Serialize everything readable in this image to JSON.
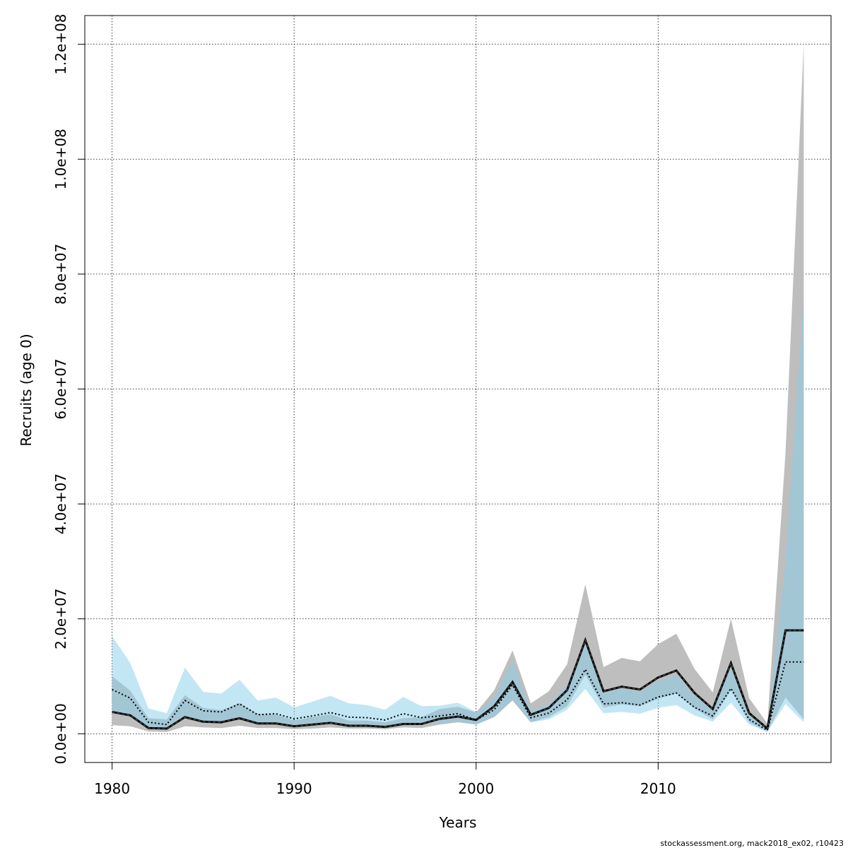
{
  "chart_data": {
    "type": "area",
    "xlabel": "Years",
    "ylabel": "Recruits (age 0)",
    "xlim": [
      1978.5,
      2019.5
    ],
    "ylim": [
      -5000000,
      125000000
    ],
    "x_ticks": [
      1980,
      1990,
      2000,
      2010
    ],
    "x_tick_labels": [
      "1980",
      "1990",
      "2000",
      "2010"
    ],
    "y_ticks": [
      0,
      20000000,
      40000000,
      60000000,
      80000000,
      100000000,
      120000000
    ],
    "y_tick_labels": [
      "0.0e+00",
      "2.0e+07",
      "4.0e+07",
      "6.0e+07",
      "8.0e+07",
      "1.0e+08",
      "1.2e+08"
    ],
    "grid": true,
    "x": [
      1980,
      1981,
      1982,
      1983,
      1984,
      1985,
      1986,
      1987,
      1988,
      1989,
      1990,
      1991,
      1992,
      1993,
      1994,
      1995,
      1996,
      1997,
      1998,
      1999,
      2000,
      2001,
      2002,
      2003,
      2004,
      2005,
      2006,
      2007,
      2008,
      2009,
      2010,
      2011,
      2012,
      2013,
      2014,
      2015,
      2016,
      2017,
      2018
    ],
    "series": [
      {
        "style": "solid",
        "band_color": "#bebebe",
        "line_color": "#000000",
        "values": [
          3800000.0,
          3200000.0,
          1000000.0,
          900000.0,
          2900000.0,
          2100000.0,
          2000000.0,
          2700000.0,
          1800000.0,
          1800000.0,
          1300000.0,
          1600000.0,
          1900000.0,
          1400000.0,
          1400000.0,
          1200000.0,
          1700000.0,
          1700000.0,
          2600000.0,
          3000000.0,
          2400000.0,
          4800000.0,
          9000000.0,
          3300000.0,
          4500000.0,
          7600000.0,
          16300000.0,
          7400000.0,
          8200000.0,
          7700000.0,
          9800000.0,
          11000000.0,
          7100000.0,
          4300000.0,
          12300000.0,
          3600000.0,
          900000.0,
          18000000.0,
          18000000.0
        ],
        "lower": [
          1500000.0,
          1300000.0,
          400000.0,
          300000.0,
          1300000.0,
          1100000.0,
          1000000.0,
          1400000.0,
          1000000.0,
          1000000.0,
          800000.0,
          900000.0,
          1100000.0,
          900000.0,
          900000.0,
          800000.0,
          1100000.0,
          1000000.0,
          1600000.0,
          2000000.0,
          1600000.0,
          2900000.0,
          5800000.0,
          2000000.0,
          2900000.0,
          4800000.0,
          10300000.0,
          4600000.0,
          5100000.0,
          4800000.0,
          6100000.0,
          7000000.0,
          4400000.0,
          2500000.0,
          7600000.0,
          2000000.0,
          400000.0,
          6300000.0,
          2500000.0
        ],
        "upper": [
          10000000.0,
          7500000.0,
          2700000.0,
          2500000.0,
          6700000.0,
          4500000.0,
          4100000.0,
          5400000.0,
          3500000.0,
          3400000.0,
          2300000.0,
          2900000.0,
          3400000.0,
          2300000.0,
          2300000.0,
          2000000.0,
          2700000.0,
          2900000.0,
          4300000.0,
          4700000.0,
          3700000.0,
          7600000.0,
          14500000.0,
          5300000.0,
          7400000.0,
          12100000.0,
          26000000.0,
          11600000.0,
          13200000.0,
          12600000.0,
          15600000.0,
          17400000.0,
          11300000.0,
          7200000.0,
          20000000.0,
          6200000.0,
          1800000.0,
          49000000.0,
          120000000.0
        ]
      },
      {
        "style": "dotted",
        "band_color": "#87ceeb",
        "line_color": "#000000",
        "values": [
          7700000.0,
          6200000.0,
          2000000.0,
          1600000.0,
          5800000.0,
          4000000.0,
          3800000.0,
          5200000.0,
          3300000.0,
          3500000.0,
          2600000.0,
          3100000.0,
          3700000.0,
          2900000.0,
          2800000.0,
          2400000.0,
          3500000.0,
          2800000.0,
          3100000.0,
          3500000.0,
          2400000.0,
          4200000.0,
          8500000.0,
          2800000.0,
          3600000.0,
          5900000.0,
          11200000.0,
          5200000.0,
          5400000.0,
          5000000.0,
          6400000.0,
          7100000.0,
          4600000.0,
          3100000.0,
          7900000.0,
          2500000.0,
          600000.0,
          12500000.0,
          12500000.0
        ],
        "lower": [
          3500000.0,
          2900000.0,
          900000.0,
          700000.0,
          2800000.0,
          2000000.0,
          1900000.0,
          2600000.0,
          1700000.0,
          1800000.0,
          1400000.0,
          1600000.0,
          1900000.0,
          1500000.0,
          1500000.0,
          1300000.0,
          1800000.0,
          1600000.0,
          1800000.0,
          2100000.0,
          1600000.0,
          3000000.0,
          5900000.0,
          2000000.0,
          2500000.0,
          4200000.0,
          7800000.0,
          3600000.0,
          3800000.0,
          3500000.0,
          4500000.0,
          5000000.0,
          3200000.0,
          2100000.0,
          5400000.0,
          1600000.0,
          300000.0,
          5200000.0,
          2000000.0
        ],
        "upper": [
          17000000.0,
          12300000.0,
          4400000.0,
          3600000.0,
          11500000.0,
          7300000.0,
          7000000.0,
          9400000.0,
          5800000.0,
          6300000.0,
          4600000.0,
          5600000.0,
          6600000.0,
          5300000.0,
          5000000.0,
          4200000.0,
          6400000.0,
          4800000.0,
          4900000.0,
          5400000.0,
          3800000.0,
          6300000.0,
          12700000.0,
          4100000.0,
          5200000.0,
          8500000.0,
          16300000.0,
          7500000.0,
          7900000.0,
          7300000.0,
          9200000.0,
          10300000.0,
          6600000.0,
          4500000.0,
          11600000.0,
          3600000.0,
          900000.0,
          30000000.0,
          76000000.0
        ]
      }
    ],
    "footer": "stockassessment.org, mack2018_ex02, r10423"
  }
}
